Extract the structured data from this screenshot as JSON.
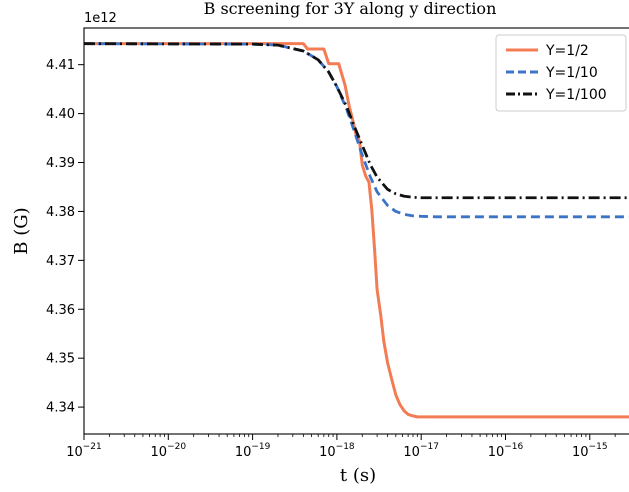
{
  "chart_data": {
    "type": "line",
    "title": "B screening for 3Y along y direction",
    "xlabel": "t (s)",
    "ylabel": "B (G)",
    "y_offset_label": "1e12",
    "x_scale": "log",
    "xlim": [
      1e-21,
      3e-15
    ],
    "ylim": [
      4.3345,
      4.4175
    ],
    "x_ticks": [
      {
        "value": 1e-21,
        "base": "10",
        "exp": "−21"
      },
      {
        "value": 1e-20,
        "base": "10",
        "exp": "−20"
      },
      {
        "value": 1e-19,
        "base": "10",
        "exp": "−19"
      },
      {
        "value": 1e-18,
        "base": "10",
        "exp": "−18"
      },
      {
        "value": 1e-17,
        "base": "10",
        "exp": "−17"
      },
      {
        "value": 1e-16,
        "base": "10",
        "exp": "−16"
      },
      {
        "value": 1e-15,
        "base": "10",
        "exp": "−15"
      }
    ],
    "y_ticks": [
      {
        "value": 4.34,
        "label": "4.34"
      },
      {
        "value": 4.35,
        "label": "4.35"
      },
      {
        "value": 4.36,
        "label": "4.36"
      },
      {
        "value": 4.37,
        "label": "4.37"
      },
      {
        "value": 4.38,
        "label": "4.38"
      },
      {
        "value": 4.39,
        "label": "4.39"
      },
      {
        "value": 4.4,
        "label": "4.40"
      },
      {
        "value": 4.41,
        "label": "4.41"
      }
    ],
    "grid": false,
    "legend_position": "top-right",
    "series": [
      {
        "name": "Y=1/2",
        "color": "#f47c55",
        "style": "solid",
        "x": [
          1e-21,
          4e-19,
          4.5e-19,
          7e-19,
          8e-19,
          1.05e-18,
          1.25e-18,
          1.4e-18,
          1.55e-18,
          1.7e-18,
          1.85e-18,
          2e-18,
          2.2e-18,
          2.4e-18,
          2.6e-18,
          2.8e-18,
          3e-18,
          3.3e-18,
          3.6e-18,
          4e-18,
          4.5e-18,
          5e-18,
          5.6e-18,
          6.3e-18,
          7e-18,
          8e-18,
          9e-18,
          1e-17,
          1.2e-17,
          1.5e-17,
          2e-17,
          3e-15
        ],
        "y": [
          4.4143,
          4.4143,
          4.4132,
          4.4132,
          4.4102,
          4.4102,
          4.4058,
          4.4015,
          4.3985,
          4.3955,
          4.3945,
          4.3895,
          4.3872,
          4.386,
          4.3802,
          4.3722,
          4.364,
          4.359,
          4.3535,
          4.349,
          4.3455,
          4.3425,
          4.3405,
          4.3392,
          4.3385,
          4.3382,
          4.338,
          4.338,
          4.338,
          4.338,
          4.338,
          4.338
        ]
      },
      {
        "name": "Y=1/10",
        "color": "#3b73c9",
        "style": "dashed",
        "x": [
          1e-21,
          1e-19,
          2e-19,
          4e-19,
          6e-19,
          8e-19,
          1e-18,
          1.3e-18,
          1.6e-18,
          2e-18,
          2.5e-18,
          3e-18,
          4e-18,
          5e-18,
          6.3e-18,
          8e-18,
          1e-17,
          1.5e-17,
          2e-17,
          3e-15
        ],
        "y": [
          4.4143,
          4.4142,
          4.414,
          4.4128,
          4.411,
          4.4085,
          4.4055,
          4.401,
          4.3965,
          4.3915,
          4.387,
          4.384,
          4.3812,
          4.38,
          4.3794,
          4.3791,
          4.379,
          4.3789,
          4.3789,
          4.3789
        ]
      },
      {
        "name": "Y=1/100",
        "color": "#111111",
        "style": "dashdot",
        "x": [
          1e-21,
          1e-19,
          2e-19,
          4e-19,
          6e-19,
          8e-19,
          1e-18,
          1.3e-18,
          1.6e-18,
          2e-18,
          2.5e-18,
          3e-18,
          4e-18,
          5e-18,
          6.3e-18,
          8e-18,
          1e-17,
          1.5e-17,
          2e-17,
          3e-15
        ],
        "y": [
          4.4143,
          4.4142,
          4.414,
          4.4128,
          4.411,
          4.4085,
          4.4055,
          4.4015,
          4.3975,
          4.3935,
          4.3895,
          4.387,
          4.3845,
          4.3836,
          4.3831,
          4.3829,
          4.3828,
          4.3828,
          4.3828,
          4.3828
        ]
      }
    ]
  }
}
